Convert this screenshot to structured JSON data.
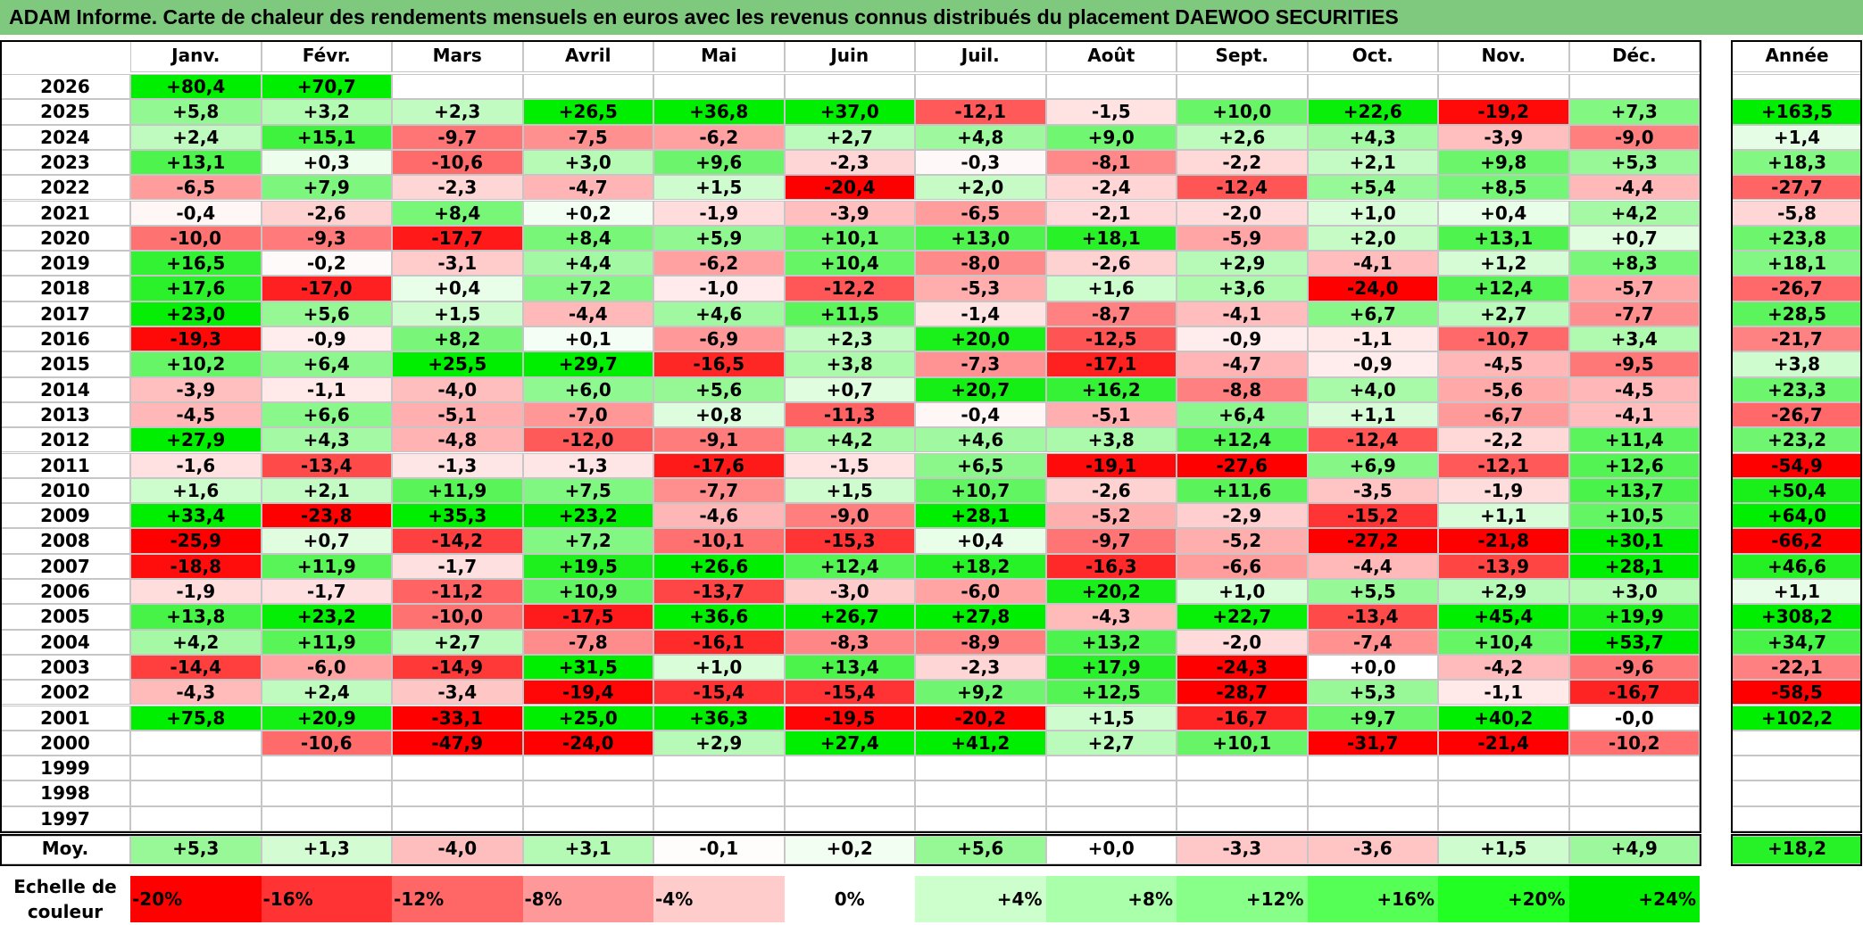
{
  "title": "ADAM Informe. Carte de chaleur des rendements mensuels en euros avec les revenus connus distribués du placement DAEWOO SECURITIES",
  "chart_data": {
    "type": "heatmap",
    "title": "ADAM Informe. Carte de chaleur des rendements mensuels en euros avec les revenus connus distribués du placement DAEWOO SECURITIES",
    "months": [
      "Janv.",
      "Févr.",
      "Mars",
      "Avril",
      "Mai",
      "Juin",
      "Juil.",
      "Août",
      "Sept.",
      "Oct.",
      "Nov.",
      "Déc."
    ],
    "year_header": "Année",
    "avg_label": "Moy.",
    "rows": [
      {
        "year": "2026",
        "values": [
          "+80,4",
          "+70,7",
          "",
          "",
          "",
          "",
          "",
          "",
          "",
          "",
          "",
          ""
        ],
        "annual": ""
      },
      {
        "year": "2025",
        "values": [
          "+5,8",
          "+3,2",
          "+2,3",
          "+26,5",
          "+36,8",
          "+37,0",
          "-12,1",
          "-1,5",
          "+10,0",
          "+22,6",
          "-19,2",
          "+7,3"
        ],
        "annual": "+163,5"
      },
      {
        "year": "2024",
        "values": [
          "+2,4",
          "+15,1",
          "-9,7",
          "-7,5",
          "-6,2",
          "+2,7",
          "+4,8",
          "+9,0",
          "+2,6",
          "+4,3",
          "-3,9",
          "-9,0"
        ],
        "annual": "+1,4"
      },
      {
        "year": "2023",
        "values": [
          "+13,1",
          "+0,3",
          "-10,6",
          "+3,0",
          "+9,6",
          "-2,3",
          "-0,3",
          "-8,1",
          "-2,2",
          "+2,1",
          "+9,8",
          "+5,3"
        ],
        "annual": "+18,3"
      },
      {
        "year": "2022",
        "values": [
          "-6,5",
          "+7,9",
          "-2,3",
          "-4,7",
          "+1,5",
          "-20,4",
          "+2,0",
          "-2,4",
          "-12,4",
          "+5,4",
          "+8,5",
          "-4,4"
        ],
        "annual": "-27,7"
      },
      {
        "year": "2021",
        "values": [
          "-0,4",
          "-2,6",
          "+8,4",
          "+0,2",
          "-1,9",
          "-3,9",
          "-6,5",
          "-2,1",
          "-2,0",
          "+1,0",
          "+0,4",
          "+4,2"
        ],
        "annual": "-5,8"
      },
      {
        "year": "2020",
        "values": [
          "-10,0",
          "-9,3",
          "-17,7",
          "+8,4",
          "+5,9",
          "+10,1",
          "+13,0",
          "+18,1",
          "-5,9",
          "+2,0",
          "+13,1",
          "+0,7"
        ],
        "annual": "+23,8"
      },
      {
        "year": "2019",
        "values": [
          "+16,5",
          "-0,2",
          "-3,1",
          "+4,4",
          "-6,2",
          "+10,4",
          "-8,0",
          "-2,6",
          "+2,9",
          "-4,1",
          "+1,2",
          "+8,3"
        ],
        "annual": "+18,1"
      },
      {
        "year": "2018",
        "values": [
          "+17,6",
          "-17,0",
          "+0,4",
          "+7,2",
          "-1,0",
          "-12,2",
          "-5,3",
          "+1,6",
          "+3,6",
          "-24,0",
          "+12,4",
          "-5,7"
        ],
        "annual": "-26,7"
      },
      {
        "year": "2017",
        "values": [
          "+23,0",
          "+5,6",
          "+1,5",
          "-4,4",
          "+4,6",
          "+11,5",
          "-1,4",
          "-8,7",
          "-4,1",
          "+6,7",
          "+2,7",
          "-7,7"
        ],
        "annual": "+28,5"
      },
      {
        "year": "2016",
        "values": [
          "-19,3",
          "-0,9",
          "+8,2",
          "+0,1",
          "-6,9",
          "+2,3",
          "+20,0",
          "-12,5",
          "-0,9",
          "-1,1",
          "-10,7",
          "+3,4"
        ],
        "annual": "-21,7"
      },
      {
        "year": "2015",
        "values": [
          "+10,2",
          "+6,4",
          "+25,5",
          "+29,7",
          "-16,5",
          "+3,8",
          "-7,3",
          "-17,1",
          "-4,7",
          "-0,9",
          "-4,5",
          "-9,5"
        ],
        "annual": "+3,8"
      },
      {
        "year": "2014",
        "values": [
          "-3,9",
          "-1,1",
          "-4,0",
          "+6,0",
          "+5,6",
          "+0,7",
          "+20,7",
          "+16,2",
          "-8,8",
          "+4,0",
          "-5,6",
          "-4,5"
        ],
        "annual": "+23,3"
      },
      {
        "year": "2013",
        "values": [
          "-4,5",
          "+6,6",
          "-5,1",
          "-7,0",
          "+0,8",
          "-11,3",
          "-0,4",
          "-5,1",
          "+6,4",
          "+1,1",
          "-6,7",
          "-4,1"
        ],
        "annual": "-26,7"
      },
      {
        "year": "2012",
        "values": [
          "+27,9",
          "+4,3",
          "-4,8",
          "-12,0",
          "-9,1",
          "+4,2",
          "+4,6",
          "+3,8",
          "+12,4",
          "-12,4",
          "-2,2",
          "+11,4"
        ],
        "annual": "+23,2"
      },
      {
        "year": "2011",
        "values": [
          "-1,6",
          "-13,4",
          "-1,3",
          "-1,3",
          "-17,6",
          "-1,5",
          "+6,5",
          "-19,1",
          "-27,6",
          "+6,9",
          "-12,1",
          "+12,6"
        ],
        "annual": "-54,9"
      },
      {
        "year": "2010",
        "values": [
          "+1,6",
          "+2,1",
          "+11,9",
          "+7,5",
          "-7,7",
          "+1,5",
          "+10,7",
          "-2,6",
          "+11,6",
          "-3,5",
          "-1,9",
          "+13,7"
        ],
        "annual": "+50,4"
      },
      {
        "year": "2009",
        "values": [
          "+33,4",
          "-23,8",
          "+35,3",
          "+23,2",
          "-4,6",
          "-9,0",
          "+28,1",
          "-5,2",
          "-2,9",
          "-15,2",
          "+1,1",
          "+10,5"
        ],
        "annual": "+64,0"
      },
      {
        "year": "2008",
        "values": [
          "-25,9",
          "+0,7",
          "-14,2",
          "+7,2",
          "-10,1",
          "-15,3",
          "+0,4",
          "-9,7",
          "-5,2",
          "-27,2",
          "-21,8",
          "+30,1"
        ],
        "annual": "-66,2"
      },
      {
        "year": "2007",
        "values": [
          "-18,8",
          "+11,9",
          "-1,7",
          "+19,5",
          "+26,6",
          "+12,4",
          "+18,2",
          "-16,3",
          "-6,6",
          "-4,4",
          "-13,9",
          "+28,1"
        ],
        "annual": "+46,6"
      },
      {
        "year": "2006",
        "values": [
          "-1,9",
          "-1,7",
          "-11,2",
          "+10,9",
          "-13,7",
          "-3,0",
          "-6,0",
          "+20,2",
          "+1,0",
          "+5,5",
          "+2,9",
          "+3,0"
        ],
        "annual": "+1,1"
      },
      {
        "year": "2005",
        "values": [
          "+13,8",
          "+23,2",
          "-10,0",
          "-17,5",
          "+36,6",
          "+26,7",
          "+27,8",
          "-4,3",
          "+22,7",
          "-13,4",
          "+45,4",
          "+19,9"
        ],
        "annual": "+308,2"
      },
      {
        "year": "2004",
        "values": [
          "+4,2",
          "+11,9",
          "+2,7",
          "-7,8",
          "-16,1",
          "-8,3",
          "-8,9",
          "+13,2",
          "-2,0",
          "-7,4",
          "+10,4",
          "+53,7"
        ],
        "annual": "+34,7"
      },
      {
        "year": "2003",
        "values": [
          "-14,4",
          "-6,0",
          "-14,9",
          "+31,5",
          "+1,0",
          "+13,4",
          "-2,3",
          "+17,9",
          "-24,3",
          "+0,0",
          "-4,2",
          "-9,6"
        ],
        "annual": "-22,1"
      },
      {
        "year": "2002",
        "values": [
          "-4,3",
          "+2,4",
          "-3,4",
          "-19,4",
          "-15,4",
          "-15,4",
          "+9,2",
          "+12,5",
          "-28,7",
          "+5,3",
          "-1,1",
          "-16,7"
        ],
        "annual": "-58,5"
      },
      {
        "year": "2001",
        "values": [
          "+75,8",
          "+20,9",
          "-33,1",
          "+25,0",
          "+36,3",
          "-19,5",
          "-20,2",
          "+1,5",
          "-16,7",
          "+9,7",
          "+40,2",
          "-0,0"
        ],
        "annual": "+102,2"
      },
      {
        "year": "2000",
        "values": [
          "",
          "-10,6",
          "-47,9",
          "-24,0",
          "+2,9",
          "+27,4",
          "+41,2",
          "+2,7",
          "+10,1",
          "-31,7",
          "-21,4",
          "-10,2"
        ],
        "annual": ""
      },
      {
        "year": "1999",
        "values": [
          "",
          "",
          "",
          "",
          "",
          "",
          "",
          "",
          "",
          "",
          "",
          ""
        ],
        "annual": ""
      },
      {
        "year": "1998",
        "values": [
          "",
          "",
          "",
          "",
          "",
          "",
          "",
          "",
          "",
          "",
          "",
          ""
        ],
        "annual": ""
      },
      {
        "year": "1997",
        "values": [
          "",
          "",
          "",
          "",
          "",
          "",
          "",
          "",
          "",
          "",
          "",
          ""
        ],
        "annual": ""
      }
    ],
    "averages": [
      "+5,3",
      "+1,3",
      "-4,0",
      "+3,1",
      "-0,1",
      "+0,2",
      "+5,6",
      "+0,0",
      "-3,3",
      "-3,6",
      "+1,5",
      "+4,9"
    ],
    "average_annual": "+18,2",
    "scale_label": "Echelle de couleur",
    "scale": [
      {
        "label": "-20%",
        "color": "#ff0000",
        "align": "left"
      },
      {
        "label": "-16%",
        "color": "#ff3333",
        "align": "left"
      },
      {
        "label": "-12%",
        "color": "#ff6666",
        "align": "left"
      },
      {
        "label": "-8%",
        "color": "#ff9999",
        "align": "left"
      },
      {
        "label": "-4%",
        "color": "#ffcccc",
        "align": "left"
      },
      {
        "label": "0%",
        "color": "#ffffff",
        "align": "center"
      },
      {
        "label": "+4%",
        "color": "#ccffcc",
        "align": "right"
      },
      {
        "label": "+8%",
        "color": "#aaffaa",
        "align": "right"
      },
      {
        "label": "+12%",
        "color": "#88ff88",
        "align": "right"
      },
      {
        "label": "+16%",
        "color": "#55ff55",
        "align": "right"
      },
      {
        "label": "+20%",
        "color": "#22ff22",
        "align": "right"
      },
      {
        "label": "+24%",
        "color": "#00ee00",
        "align": "right"
      }
    ]
  }
}
